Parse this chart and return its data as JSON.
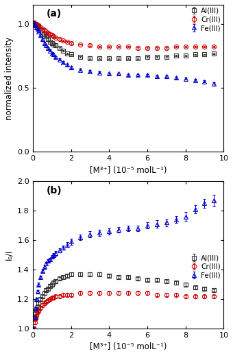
{
  "panel_a": {
    "title": "(a)",
    "ylabel": "normalized intensity",
    "xlabel": "[M³⁺] (10⁻⁵ molL⁻¹)",
    "ylim": [
      0.0,
      1.15
    ],
    "yticks": [
      0.0,
      0.5,
      1.0
    ],
    "ytick_labels": [
      "0.0",
      "0.5",
      "1.0"
    ],
    "xlim": [
      0,
      10
    ],
    "xticks": [
      0,
      2,
      4,
      6,
      8,
      10
    ],
    "Al": {
      "color": "#333333",
      "marker": "s",
      "label": "Al(III)",
      "x": [
        0.05,
        0.1,
        0.15,
        0.2,
        0.25,
        0.3,
        0.4,
        0.5,
        0.6,
        0.7,
        0.8,
        0.9,
        1.0,
        1.1,
        1.2,
        1.4,
        1.6,
        1.8,
        2.0,
        2.5,
        3.0,
        3.5,
        4.0,
        4.5,
        5.0,
        5.5,
        6.0,
        6.5,
        7.0,
        7.5,
        8.0,
        8.5,
        9.0,
        9.5
      ],
      "y": [
        1.01,
        1.0,
        1.0,
        0.99,
        0.99,
        0.98,
        0.96,
        0.94,
        0.92,
        0.9,
        0.88,
        0.86,
        0.85,
        0.84,
        0.83,
        0.81,
        0.79,
        0.77,
        0.76,
        0.74,
        0.73,
        0.73,
        0.73,
        0.73,
        0.73,
        0.73,
        0.74,
        0.74,
        0.74,
        0.75,
        0.75,
        0.76,
        0.76,
        0.77
      ],
      "yerr": [
        0.01,
        0.01,
        0.01,
        0.005,
        0.005,
        0.005,
        0.005,
        0.005,
        0.005,
        0.005,
        0.005,
        0.005,
        0.005,
        0.005,
        0.005,
        0.005,
        0.005,
        0.005,
        0.005,
        0.005,
        0.005,
        0.005,
        0.005,
        0.005,
        0.005,
        0.005,
        0.005,
        0.005,
        0.005,
        0.005,
        0.005,
        0.005,
        0.005,
        0.005
      ]
    },
    "Cr": {
      "color": "#cc0000",
      "marker": "o",
      "label": "Cr(III)",
      "x": [
        0.05,
        0.1,
        0.15,
        0.2,
        0.25,
        0.3,
        0.4,
        0.5,
        0.6,
        0.7,
        0.8,
        0.9,
        1.0,
        1.1,
        1.2,
        1.4,
        1.6,
        1.8,
        2.0,
        2.5,
        3.0,
        3.5,
        4.0,
        4.5,
        5.0,
        5.5,
        6.0,
        6.5,
        7.0,
        7.5,
        8.0,
        8.5,
        9.0,
        9.5
      ],
      "y": [
        1.01,
        1.0,
        1.0,
        0.99,
        0.99,
        0.98,
        0.97,
        0.96,
        0.95,
        0.94,
        0.93,
        0.92,
        0.91,
        0.9,
        0.89,
        0.88,
        0.87,
        0.86,
        0.85,
        0.84,
        0.83,
        0.82,
        0.82,
        0.82,
        0.82,
        0.81,
        0.81,
        0.81,
        0.81,
        0.82,
        0.82,
        0.82,
        0.82,
        0.82
      ],
      "yerr": [
        0.01,
        0.01,
        0.01,
        0.005,
        0.005,
        0.005,
        0.005,
        0.005,
        0.005,
        0.005,
        0.005,
        0.005,
        0.005,
        0.005,
        0.005,
        0.005,
        0.005,
        0.005,
        0.005,
        0.005,
        0.005,
        0.005,
        0.005,
        0.005,
        0.005,
        0.005,
        0.005,
        0.005,
        0.005,
        0.005,
        0.005,
        0.005,
        0.005,
        0.005
      ]
    },
    "Fe": {
      "color": "#0000cc",
      "marker": "^",
      "label": "Fe(III)",
      "x": [
        0.05,
        0.1,
        0.15,
        0.2,
        0.25,
        0.3,
        0.4,
        0.5,
        0.6,
        0.7,
        0.8,
        0.9,
        1.0,
        1.1,
        1.2,
        1.4,
        1.6,
        1.8,
        2.0,
        2.5,
        3.0,
        3.5,
        4.0,
        4.5,
        5.0,
        5.5,
        6.0,
        6.5,
        7.0,
        7.5,
        8.0,
        8.5,
        9.0,
        9.5
      ],
      "y": [
        1.01,
        1.0,
        0.99,
        0.97,
        0.96,
        0.94,
        0.91,
        0.88,
        0.85,
        0.83,
        0.81,
        0.79,
        0.77,
        0.76,
        0.74,
        0.72,
        0.7,
        0.68,
        0.66,
        0.64,
        0.63,
        0.62,
        0.61,
        0.61,
        0.6,
        0.6,
        0.6,
        0.59,
        0.59,
        0.58,
        0.57,
        0.56,
        0.55,
        0.53
      ],
      "yerr": [
        0.01,
        0.01,
        0.01,
        0.008,
        0.008,
        0.008,
        0.008,
        0.008,
        0.008,
        0.008,
        0.008,
        0.008,
        0.008,
        0.008,
        0.008,
        0.008,
        0.008,
        0.008,
        0.008,
        0.008,
        0.008,
        0.008,
        0.008,
        0.008,
        0.008,
        0.008,
        0.008,
        0.008,
        0.008,
        0.008,
        0.008,
        0.008,
        0.008,
        0.012
      ]
    }
  },
  "panel_b": {
    "title": "(b)",
    "ylabel": "I₀/I",
    "xlabel": "[M³⁺] (10⁻⁵ molL⁻¹)",
    "ylim": [
      1.0,
      2.0
    ],
    "yticks": [
      1.0,
      1.2,
      1.4,
      1.6,
      1.8,
      2.0
    ],
    "xlim": [
      0,
      10
    ],
    "xticks": [
      0,
      2,
      4,
      6,
      8,
      10
    ],
    "Al": {
      "color": "#333333",
      "marker": "s",
      "label": "Al(III)",
      "x": [
        0.05,
        0.1,
        0.15,
        0.2,
        0.25,
        0.3,
        0.4,
        0.5,
        0.6,
        0.7,
        0.8,
        0.9,
        1.0,
        1.1,
        1.2,
        1.4,
        1.6,
        1.8,
        2.0,
        2.5,
        3.0,
        3.5,
        4.0,
        4.5,
        5.0,
        5.5,
        6.0,
        6.5,
        7.0,
        7.5,
        8.0,
        8.5,
        9.0,
        9.5
      ],
      "y": [
        1.0,
        1.07,
        1.1,
        1.13,
        1.15,
        1.17,
        1.2,
        1.22,
        1.24,
        1.26,
        1.27,
        1.29,
        1.3,
        1.31,
        1.32,
        1.34,
        1.35,
        1.36,
        1.37,
        1.37,
        1.37,
        1.37,
        1.36,
        1.35,
        1.35,
        1.34,
        1.33,
        1.33,
        1.32,
        1.31,
        1.3,
        1.28,
        1.27,
        1.26
      ],
      "yerr": [
        0.01,
        0.01,
        0.01,
        0.01,
        0.01,
        0.01,
        0.01,
        0.01,
        0.01,
        0.01,
        0.01,
        0.01,
        0.01,
        0.01,
        0.01,
        0.01,
        0.01,
        0.01,
        0.01,
        0.01,
        0.01,
        0.01,
        0.01,
        0.01,
        0.01,
        0.01,
        0.01,
        0.01,
        0.01,
        0.01,
        0.01,
        0.01,
        0.01,
        0.01
      ]
    },
    "Cr": {
      "color": "#cc0000",
      "marker": "o",
      "label": "Cr(III)",
      "x": [
        0.05,
        0.1,
        0.15,
        0.2,
        0.25,
        0.3,
        0.4,
        0.5,
        0.6,
        0.7,
        0.8,
        0.9,
        1.0,
        1.1,
        1.2,
        1.4,
        1.6,
        1.8,
        2.0,
        2.5,
        3.0,
        3.5,
        4.0,
        4.5,
        5.0,
        5.5,
        6.0,
        6.5,
        7.0,
        7.5,
        8.0,
        8.5,
        9.0,
        9.5
      ],
      "y": [
        1.0,
        1.04,
        1.07,
        1.09,
        1.11,
        1.12,
        1.14,
        1.16,
        1.17,
        1.18,
        1.19,
        1.2,
        1.21,
        1.21,
        1.22,
        1.22,
        1.23,
        1.23,
        1.23,
        1.24,
        1.24,
        1.24,
        1.24,
        1.24,
        1.24,
        1.24,
        1.24,
        1.23,
        1.23,
        1.23,
        1.22,
        1.22,
        1.22,
        1.22
      ],
      "yerr": [
        0.01,
        0.01,
        0.01,
        0.01,
        0.01,
        0.01,
        0.01,
        0.01,
        0.01,
        0.01,
        0.01,
        0.01,
        0.01,
        0.01,
        0.01,
        0.01,
        0.01,
        0.01,
        0.01,
        0.01,
        0.01,
        0.01,
        0.01,
        0.01,
        0.01,
        0.01,
        0.01,
        0.01,
        0.01,
        0.01,
        0.01,
        0.01,
        0.01,
        0.01
      ]
    },
    "Fe": {
      "color": "#0000cc",
      "marker": "^",
      "label": "Fe(III)",
      "x": [
        0.05,
        0.1,
        0.15,
        0.2,
        0.25,
        0.3,
        0.4,
        0.5,
        0.6,
        0.7,
        0.8,
        0.9,
        1.0,
        1.1,
        1.2,
        1.4,
        1.6,
        1.8,
        2.0,
        2.5,
        3.0,
        3.5,
        4.0,
        4.5,
        5.0,
        5.5,
        6.0,
        6.5,
        7.0,
        7.5,
        8.0,
        8.5,
        9.0,
        9.5
      ],
      "y": [
        1.0,
        1.08,
        1.14,
        1.2,
        1.25,
        1.3,
        1.35,
        1.39,
        1.42,
        1.44,
        1.46,
        1.47,
        1.49,
        1.5,
        1.51,
        1.53,
        1.55,
        1.57,
        1.59,
        1.62,
        1.64,
        1.65,
        1.66,
        1.67,
        1.68,
        1.68,
        1.7,
        1.71,
        1.72,
        1.74,
        1.76,
        1.81,
        1.85,
        1.87
      ],
      "yerr": [
        0.01,
        0.01,
        0.01,
        0.01,
        0.01,
        0.01,
        0.01,
        0.01,
        0.01,
        0.01,
        0.01,
        0.01,
        0.01,
        0.01,
        0.015,
        0.015,
        0.015,
        0.015,
        0.02,
        0.02,
        0.02,
        0.02,
        0.02,
        0.02,
        0.02,
        0.02,
        0.02,
        0.025,
        0.025,
        0.025,
        0.03,
        0.03,
        0.03,
        0.04
      ]
    }
  }
}
